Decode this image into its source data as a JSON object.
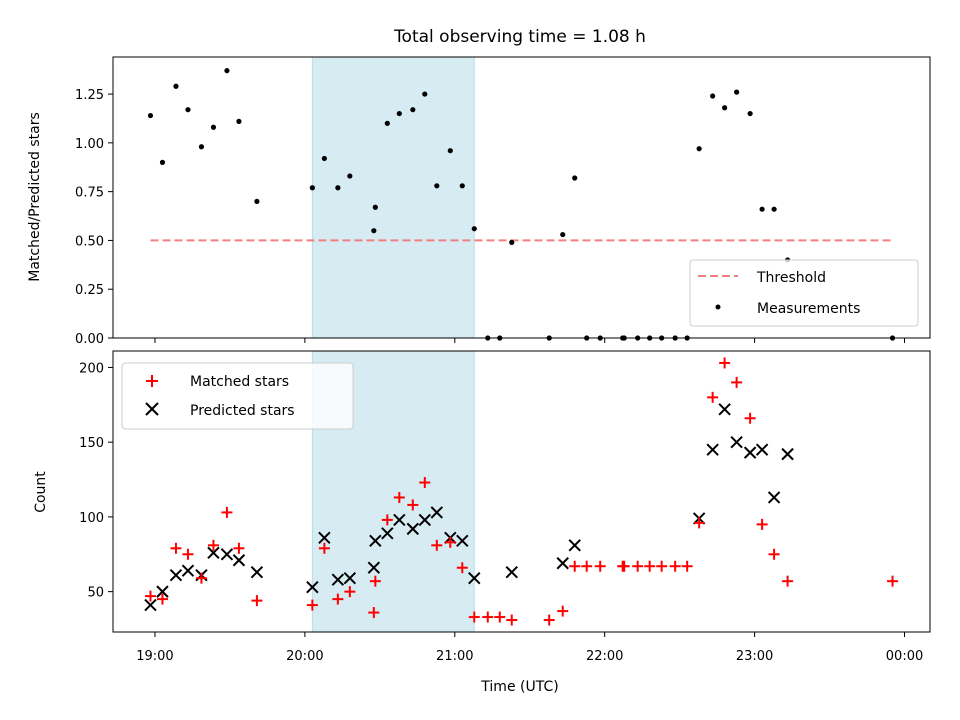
{
  "chart_data": [
    {
      "type": "scatter",
      "title": "Total observing time = 1.08 h",
      "xlabel": "",
      "ylabel": "Matched/Predicted stars",
      "x_unit": "hours UTC",
      "xlim": [
        18.72,
        24.17
      ],
      "ylim": [
        0,
        1.44
      ],
      "yticks": [
        0.0,
        0.25,
        0.5,
        0.75,
        1.0,
        1.25
      ],
      "ytick_labels": [
        "0.00",
        "0.25",
        "0.50",
        "0.75",
        "1.00",
        "1.25"
      ],
      "shaded_interval": [
        20.05,
        21.13
      ],
      "legend": {
        "position": "lower-right",
        "entries": [
          "Threshold",
          "Measurements"
        ]
      },
      "threshold": {
        "name": "Threshold",
        "y": 0.5,
        "x": [
          18.97,
          23.92
        ],
        "color": "#f08080",
        "style": "dashed"
      },
      "series": [
        {
          "name": "Measurements",
          "color": "#000000",
          "x": [
            18.97,
            19.05,
            19.14,
            19.22,
            19.31,
            19.39,
            19.48,
            19.56,
            19.68,
            20.05,
            20.13,
            20.22,
            20.3,
            20.46,
            20.47,
            20.55,
            20.63,
            20.72,
            20.8,
            20.88,
            20.97,
            21.05,
            21.13,
            21.22,
            21.3,
            21.38,
            21.63,
            21.72,
            21.8,
            21.88,
            21.97,
            22.12,
            22.13,
            22.22,
            22.3,
            22.38,
            22.47,
            22.55,
            22.63,
            22.72,
            22.8,
            22.88,
            22.97,
            23.05,
            23.13,
            23.22,
            23.92
          ],
          "y": [
            1.14,
            0.9,
            1.29,
            1.17,
            0.98,
            1.08,
            1.37,
            1.11,
            0.7,
            0.77,
            0.92,
            0.77,
            0.83,
            0.55,
            0.67,
            1.1,
            1.15,
            1.17,
            1.25,
            0.78,
            0.96,
            0.78,
            0.56,
            0.0,
            0.0,
            0.49,
            0.0,
            0.53,
            0.82,
            0.0,
            0.0,
            0.0,
            0.0,
            0.0,
            0.0,
            0.0,
            0.0,
            0.0,
            0.97,
            1.24,
            1.18,
            1.26,
            1.15,
            0.66,
            0.66,
            0.4,
            0.0
          ]
        }
      ]
    },
    {
      "type": "scatter",
      "title": "",
      "xlabel": "Time (UTC)",
      "ylabel": "Count",
      "x_unit": "hours UTC",
      "xlim": [
        18.72,
        24.17
      ],
      "ylim": [
        23,
        211
      ],
      "xticks": [
        19,
        20,
        21,
        22,
        23,
        24
      ],
      "xtick_labels": [
        "19:00",
        "20:00",
        "21:00",
        "22:00",
        "23:00",
        "00:00"
      ],
      "yticks": [
        50,
        100,
        150,
        200
      ],
      "ytick_labels": [
        "50",
        "100",
        "150",
        "200"
      ],
      "shaded_interval": [
        20.05,
        21.13
      ],
      "legend": {
        "position": "upper-left",
        "entries": [
          "Matched stars",
          "Predicted stars"
        ]
      },
      "series": [
        {
          "name": "Matched stars",
          "color": "#ff0000",
          "marker": "plus",
          "x": [
            18.97,
            19.05,
            19.14,
            19.22,
            19.31,
            19.39,
            19.48,
            19.56,
            19.68,
            20.05,
            20.13,
            20.22,
            20.3,
            20.46,
            20.47,
            20.55,
            20.63,
            20.72,
            20.8,
            20.88,
            20.97,
            21.05,
            21.13,
            21.22,
            21.3,
            21.38,
            21.63,
            21.72,
            21.8,
            21.88,
            21.97,
            22.12,
            22.13,
            22.22,
            22.3,
            22.38,
            22.47,
            22.55,
            22.63,
            22.72,
            22.8,
            22.88,
            22.97,
            23.05,
            23.13,
            23.22,
            23.92
          ],
          "y": [
            47,
            45,
            79,
            75,
            59,
            81,
            103,
            79,
            44,
            41,
            79,
            45,
            50,
            36,
            57,
            98,
            113,
            108,
            123,
            81,
            83,
            66,
            33,
            33,
            33,
            31,
            31,
            37,
            67,
            67,
            67,
            67,
            67,
            67,
            67,
            67,
            67,
            67,
            96,
            180,
            203,
            190,
            166,
            95,
            75,
            57,
            57
          ]
        },
        {
          "name": "Predicted stars",
          "color": "#000000",
          "marker": "x",
          "x": [
            18.97,
            19.05,
            19.14,
            19.22,
            19.31,
            19.39,
            19.48,
            19.56,
            19.68,
            20.05,
            20.13,
            20.22,
            20.3,
            20.46,
            20.47,
            20.55,
            20.63,
            20.72,
            20.8,
            20.88,
            20.97,
            21.05,
            21.13,
            21.38,
            21.72,
            21.8,
            22.63,
            22.72,
            22.8,
            22.88,
            22.97,
            23.05,
            23.13,
            23.22
          ],
          "y": [
            41,
            50,
            61,
            64,
            61,
            76,
            75,
            71,
            63,
            53,
            86,
            58,
            59,
            66,
            84,
            89,
            98,
            92,
            98,
            103,
            86,
            84,
            59,
            63,
            69,
            81,
            99,
            145,
            172,
            150,
            143,
            145,
            113,
            142
          ]
        }
      ]
    }
  ]
}
